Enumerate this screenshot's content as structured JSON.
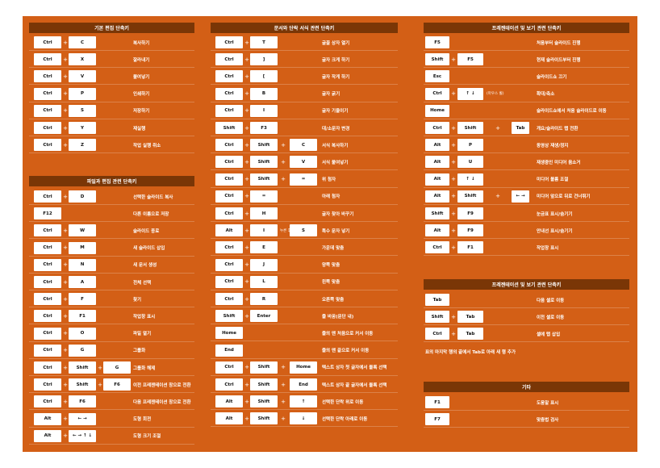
{
  "sections": [
    {
      "title": "기본 편집 단축키",
      "rows": [
        {
          "keys": [
            "Ctrl",
            "C"
          ],
          "desc": "복사하기"
        },
        {
          "keys": [
            "Ctrl",
            "X"
          ],
          "desc": "잘라내기"
        },
        {
          "keys": [
            "Ctrl",
            "V"
          ],
          "desc": "붙여넣기"
        },
        {
          "keys": [
            "Ctrl",
            "P"
          ],
          "desc": "인쇄하기"
        },
        {
          "keys": [
            "Ctrl",
            "S"
          ],
          "desc": "저장하기"
        },
        {
          "keys": [
            "Ctrl",
            "Y"
          ],
          "desc": "재실행"
        },
        {
          "keys": [
            "Ctrl",
            "Z"
          ],
          "desc": "작업 실행 취소"
        }
      ]
    },
    {
      "title": "파일과 편집 관련 단축키",
      "rows": [
        {
          "keys": [
            "Ctrl",
            "D"
          ],
          "desc": "선택한 슬라이드 복사"
        },
        {
          "keys": [
            "F12"
          ],
          "desc": "다른 이름으로 저장"
        },
        {
          "keys": [
            "Ctrl",
            "W"
          ],
          "desc": "슬라이드 종료"
        },
        {
          "keys": [
            "Ctrl",
            "M"
          ],
          "desc": "새 슬라이드 삽입"
        },
        {
          "keys": [
            "Ctrl",
            "N"
          ],
          "desc": "새 문서 생성"
        },
        {
          "keys": [
            "Ctrl",
            "A"
          ],
          "desc": "전체 선택"
        },
        {
          "keys": [
            "Ctrl",
            "F"
          ],
          "desc": "찾기"
        },
        {
          "keys": [
            "Ctrl",
            "F1"
          ],
          "desc": "작업창 표시"
        },
        {
          "keys": [
            "Ctrl",
            "O"
          ],
          "desc": "파일 열기"
        },
        {
          "keys": [
            "Ctrl",
            "G"
          ],
          "desc": "그룹화"
        },
        {
          "keys": [
            "Ctrl",
            "Shift",
            "G"
          ],
          "desc": "그룹화 해제"
        },
        {
          "keys": [
            "Ctrl",
            "Shift",
            "F6"
          ],
          "desc": "이전 프레젠테이션 창으로 전환"
        },
        {
          "keys": [
            "Ctrl",
            "F6"
          ],
          "desc": "다음 프레젠테이션 창으로 전환"
        },
        {
          "keys": [
            "Alt",
            "← →"
          ],
          "desc": "도형 회전"
        },
        {
          "keys": [
            "Alt",
            "← → ↑ ↓"
          ],
          "desc": "도형 크기 조절"
        }
      ]
    },
    {
      "title": "문서와 단락 서식 관련 단축키",
      "rows": [
        {
          "keys": [
            "Ctrl",
            "T"
          ],
          "desc": "글꼴 상자 열기"
        },
        {
          "keys": [
            "Ctrl",
            "]"
          ],
          "desc": "글자 크게 하기"
        },
        {
          "keys": [
            "Ctrl",
            "["
          ],
          "desc": "글자 작게 하기"
        },
        {
          "keys": [
            "Ctrl",
            "B"
          ],
          "desc": "글자 굵기"
        },
        {
          "keys": [
            "Ctrl",
            "I"
          ],
          "desc": "글자 기울이기"
        },
        {
          "keys": [
            "Shift",
            "F3"
          ],
          "desc": "대/소문자 변경"
        },
        {
          "keys": [
            "Ctrl",
            "Shift",
            "C"
          ],
          "desc": "서식 복사하기"
        },
        {
          "keys": [
            "Ctrl",
            "Shift",
            "V"
          ],
          "desc": "서식 붙여넣기"
        },
        {
          "keys": [
            "Ctrl",
            "Shift",
            "="
          ],
          "desc": "위 첨자"
        },
        {
          "keys": [
            "Ctrl",
            "="
          ],
          "desc": "아래 첨자"
        },
        {
          "keys": [
            "Ctrl",
            "H"
          ],
          "desc": "글자 찾아 바꾸기"
        },
        {
          "keys": [
            "Alt",
            "I",
            "S"
          ],
          "note": "누른 후",
          "desc": "특수 문자 넣기"
        },
        {
          "keys": [
            "Ctrl",
            "E"
          ],
          "desc": "가운데 맞춤"
        },
        {
          "keys": [
            "Ctrl",
            "J"
          ],
          "desc": "양쪽 맞춤"
        },
        {
          "keys": [
            "Ctrl",
            "L"
          ],
          "desc": "왼쪽 맞춤"
        },
        {
          "keys": [
            "Ctrl",
            "R"
          ],
          "desc": "오른쪽 맞춤"
        },
        {
          "keys": [
            "Shift",
            "Enter"
          ],
          "desc": "줄 바꿈(문단 내)"
        },
        {
          "keys": [
            "Home"
          ],
          "desc": "줄의 맨 처음으로 커서 이동"
        },
        {
          "keys": [
            "End"
          ],
          "desc": "줄의 맨 끝으로 커서 이동"
        },
        {
          "keys": [
            "Ctrl",
            "Shift",
            "Home"
          ],
          "desc": "텍스트 상자 첫 글자에서 블록 선택"
        },
        {
          "keys": [
            "Ctrl",
            "Shift",
            "End"
          ],
          "desc": "텍스트 상자 끝 글자에서 블록 선택"
        },
        {
          "keys": [
            "Alt",
            "Shift",
            "↑"
          ],
          "desc": "선택한 단락 위로 이동"
        },
        {
          "keys": [
            "Alt",
            "Shift",
            "↓"
          ],
          "desc": "선택한 단락 아래로 이동"
        }
      ]
    },
    {
      "title": "프레젠테이션 및 보기 관련 단축키",
      "rows": [
        {
          "keys": [
            "F5"
          ],
          "desc": "처음부터 슬라이드 진행"
        },
        {
          "keys": [
            "Shift",
            "F5"
          ],
          "desc": "현재 슬라이드부터 진행"
        },
        {
          "keys": [
            "Esc"
          ],
          "desc": "슬라이드쇼 끄기"
        },
        {
          "keys": [
            "Ctrl",
            "↑ ↓"
          ],
          "note": "(마우스 휠)",
          "desc": "확대/축소"
        },
        {
          "keys": [
            "Home"
          ],
          "desc": "슬라이드쇼에서 처음 슬라이드로 이동"
        },
        {
          "keys": [
            "Ctrl",
            "Shift",
            "Tab"
          ],
          "desc": "개요/슬라이드 탭 전환"
        },
        {
          "keys": [
            "Alt",
            "P"
          ],
          "desc": "동영상 재생/정지"
        },
        {
          "keys": [
            "Alt",
            "U"
          ],
          "desc": "재생중인 미디어 음소거"
        },
        {
          "keys": [
            "Alt",
            "↑ ↓"
          ],
          "desc": "미디어 볼륨 조절"
        },
        {
          "keys": [
            "Alt",
            "Shift",
            "← →"
          ],
          "desc": "미디어 앞으로 뒤로 건너뛰기"
        },
        {
          "keys": [
            "Shift",
            "F9"
          ],
          "desc": "눈금표 표시/숨기기"
        },
        {
          "keys": [
            "Alt",
            "F9"
          ],
          "desc": "안내선 표시/숨기기"
        },
        {
          "keys": [
            "Ctrl",
            "F1"
          ],
          "desc": "작업창 표시"
        }
      ]
    },
    {
      "title": "프레젠테이션 및 보기 관련 단축키",
      "rows": [
        {
          "keys": [
            "Tab"
          ],
          "desc": "다음 셀로 이동"
        },
        {
          "keys": [
            "Shift",
            "Tab"
          ],
          "desc": "이전 셀로 이동"
        },
        {
          "keys": [
            "Ctrl",
            "Tab"
          ],
          "desc": "셀에 탭 삽입"
        }
      ],
      "footnote": "표의 마지막 행의 끝에서 Tab로 아래 새 행 추가"
    },
    {
      "title": "기타",
      "rows": [
        {
          "keys": [
            "F1"
          ],
          "desc": "도움말 표시"
        },
        {
          "keys": [
            "F7"
          ],
          "desc": "맞춤법 검사"
        }
      ]
    }
  ]
}
